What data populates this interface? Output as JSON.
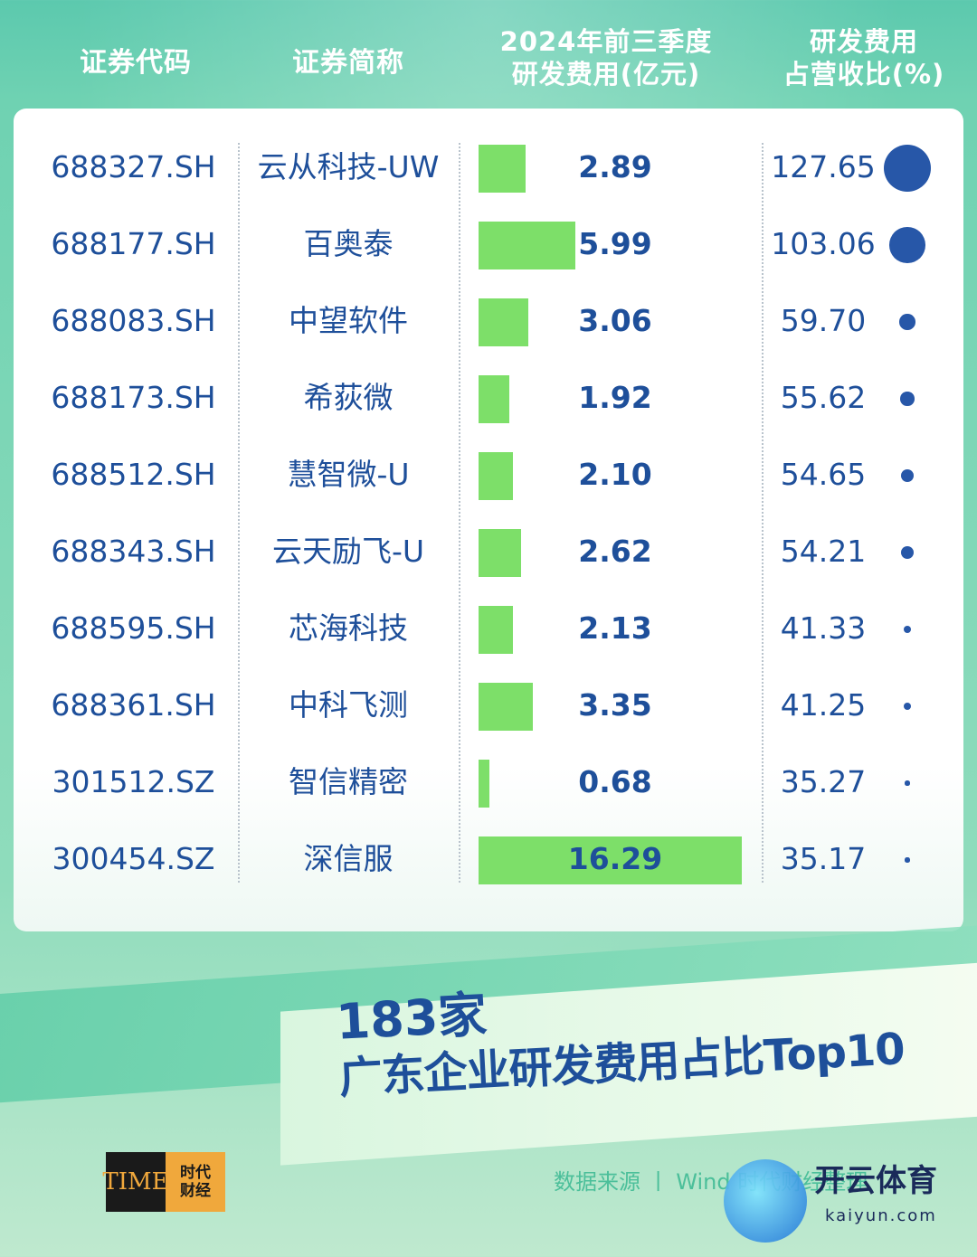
{
  "header": {
    "col_code": "证券代码",
    "col_name": "证券简称",
    "col_value_l1": "2024年前三季度",
    "col_value_l2": "研发费用(亿元)",
    "col_ratio_l1": "研发费用",
    "col_ratio_l2": "占营收比(%)"
  },
  "chart_data": {
    "type": "table",
    "columns": [
      "证券代码",
      "证券简称",
      "2024年前三季度研发费用(亿元)",
      "研发费用占营收比(%)"
    ],
    "rows": [
      {
        "code": "688327.SH",
        "name": "云从科技-UW",
        "rd_expense": "2.89",
        "rd_ratio": "127.65"
      },
      {
        "code": "688177.SH",
        "name": "百奥泰",
        "rd_expense": "5.99",
        "rd_ratio": "103.06"
      },
      {
        "code": "688083.SH",
        "name": "中望软件",
        "rd_expense": "3.06",
        "rd_ratio": "59.70"
      },
      {
        "code": "688173.SH",
        "name": "希荻微",
        "rd_expense": "1.92",
        "rd_ratio": "55.62"
      },
      {
        "code": "688512.SH",
        "name": "慧智微-U",
        "rd_expense": "2.10",
        "rd_ratio": "54.65"
      },
      {
        "code": "688343.SH",
        "name": "云天励飞-U",
        "rd_expense": "2.62",
        "rd_ratio": "54.21"
      },
      {
        "code": "688595.SH",
        "name": "芯海科技",
        "rd_expense": "2.13",
        "rd_ratio": "41.33"
      },
      {
        "code": "688361.SH",
        "name": "中科飞测",
        "rd_expense": "3.35",
        "rd_ratio": "41.25"
      },
      {
        "code": "301512.SZ",
        "name": "智信精密",
        "rd_expense": "0.68",
        "rd_ratio": "35.27"
      },
      {
        "code": "300454.SZ",
        "name": "深信服",
        "rd_expense": "16.29",
        "rd_ratio": "35.17"
      }
    ],
    "bar_max": 16.29,
    "bar_color": "#7ddf69",
    "dot_color": "#2757a8"
  },
  "title": {
    "line1": "183家",
    "line2": "广东企业研发费用占比Top10"
  },
  "source": "数据来源 丨 Wind 时代财经整理",
  "logo": {
    "left": "TIME",
    "right_l1": "时代",
    "right_l2": "财经"
  },
  "watermark": {
    "text": "开云体育",
    "sub": "kaiyun.com"
  },
  "colors": {
    "text": "#1e4f9a",
    "accent": "#4bbf9a",
    "bar": "#7ddf69"
  }
}
